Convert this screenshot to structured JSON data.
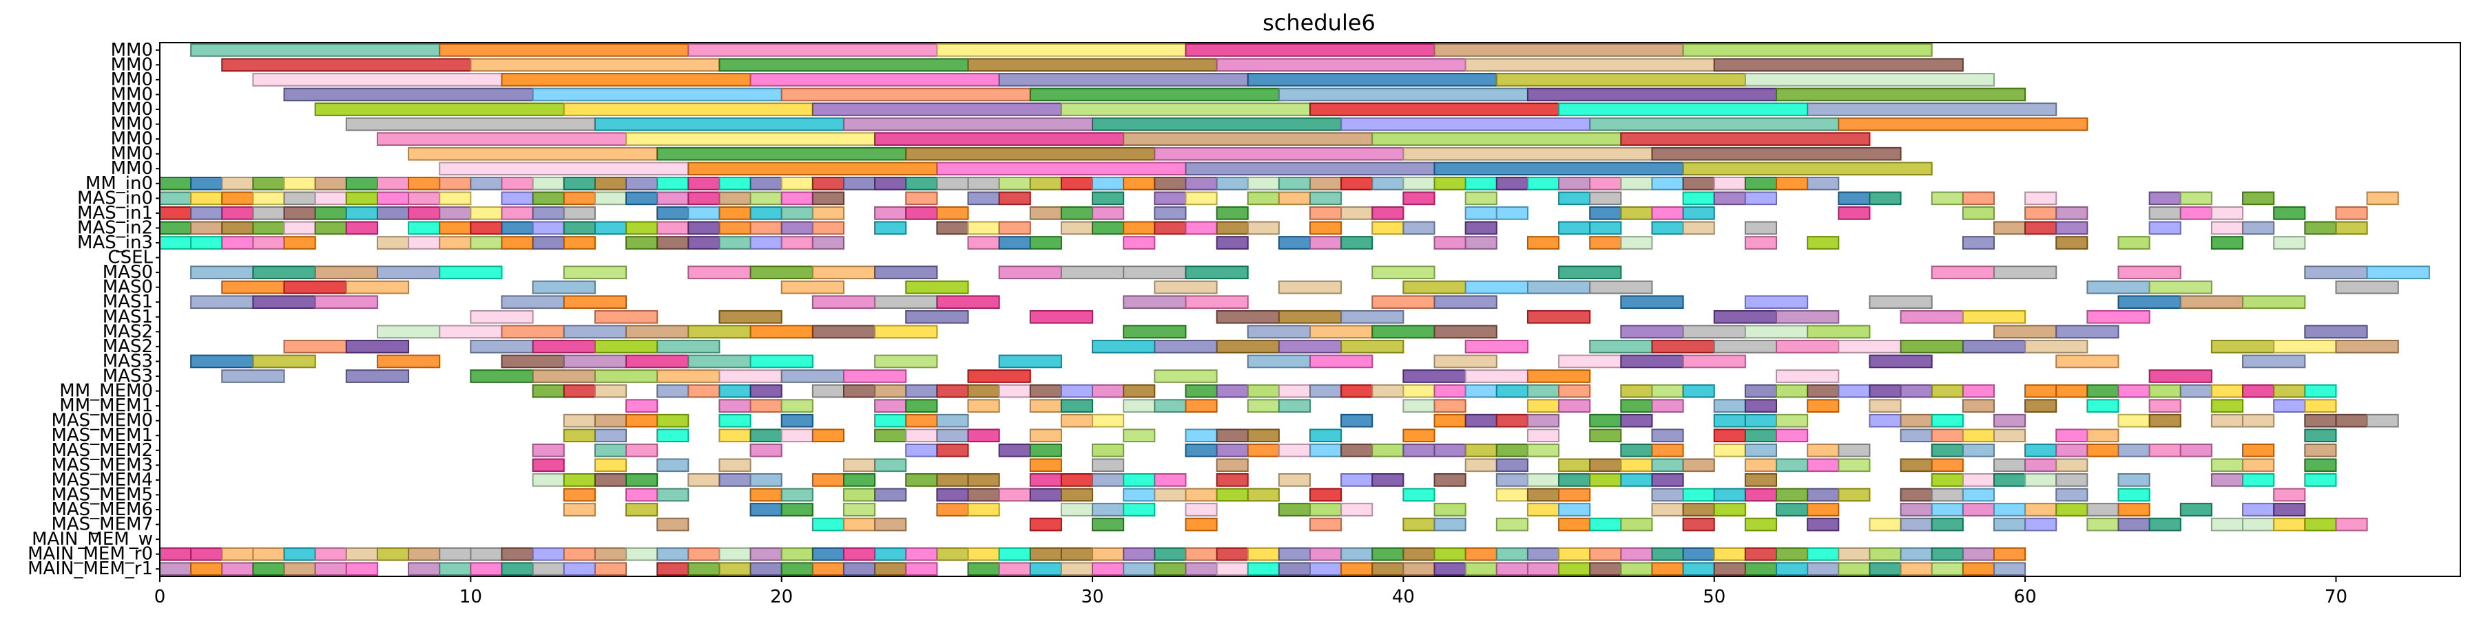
{
  "chart_data": {
    "type": "gantt",
    "title": "schedule6",
    "xlabel": "",
    "ylabel": "",
    "xlim": [
      0,
      74
    ],
    "xticks": [
      0,
      10,
      20,
      30,
      40,
      50,
      60,
      70
    ],
    "grid": false,
    "lanes": [
      "MM0",
      "MM0",
      "MM0",
      "MM0",
      "MM0",
      "MM0",
      "MM0",
      "MM0",
      "MM0",
      "MM_in0",
      "MAS_in0",
      "MAS_in1",
      "MAS_in2",
      "MAS_in3",
      "CSEL",
      "MAS0",
      "MAS0",
      "MAS1",
      "MAS1",
      "MAS2",
      "MAS2",
      "MAS3",
      "MAS3",
      "MM_MEM0",
      "MM_MEM1",
      "MAS_MEM0",
      "MAS_MEM1",
      "MAS_MEM2",
      "MAS_MEM3",
      "MAS_MEM4",
      "MAS_MEM5",
      "MAS_MEM6",
      "MAS_MEM7",
      "MAIN_MEM_w",
      "MAIN_MEM_r0",
      "MAIN_MEM_r1"
    ],
    "palette": [
      "#e377c2",
      "#8da0cb",
      "#7f7fbf",
      "#66c2a5",
      "#fc8d62",
      "#a6d854",
      "#ffd92f",
      "#e5c494",
      "#b3b3b3",
      "#1f77b4",
      "#ff7f0e",
      "#2ca02c",
      "#d62728",
      "#9467bd",
      "#8c564b",
      "#17becf",
      "#bcbd22",
      "#f781bf",
      "#80b1d3",
      "#fdb462",
      "#b3de69",
      "#fccde5",
      "#bc80bd",
      "#ccebc5",
      "#ffed6f",
      "#6a3d9a",
      "#33a02c",
      "#e31a1c",
      "#ff7f00",
      "#1b9e77",
      "#7570b3",
      "#e7298a",
      "#66a61e",
      "#a6761d",
      "#00ffcc",
      "#ff66cc",
      "#9999ff",
      "#66ccff",
      "#cc9966",
      "#99cc00"
    ],
    "tasks": [
      {
        "lane": 0,
        "start": 1,
        "dur": 8
      },
      {
        "lane": 0,
        "start": 9,
        "dur": 8
      },
      {
        "lane": 0,
        "start": 17,
        "dur": 8
      },
      {
        "lane": 0,
        "start": 25,
        "dur": 8
      },
      {
        "lane": 0,
        "start": 33,
        "dur": 8
      },
      {
        "lane": 0,
        "start": 41,
        "dur": 8
      },
      {
        "lane": 0,
        "start": 49,
        "dur": 8
      },
      {
        "lane": 1,
        "start": 2,
        "dur": 8
      },
      {
        "lane": 1,
        "start": 10,
        "dur": 8
      },
      {
        "lane": 1,
        "start": 18,
        "dur": 8
      },
      {
        "lane": 1,
        "start": 26,
        "dur": 8
      },
      {
        "lane": 1,
        "start": 34,
        "dur": 8
      },
      {
        "lane": 1,
        "start": 42,
        "dur": 8
      },
      {
        "lane": 1,
        "start": 50,
        "dur": 8
      },
      {
        "lane": 2,
        "start": 3,
        "dur": 8
      },
      {
        "lane": 2,
        "start": 11,
        "dur": 8
      },
      {
        "lane": 2,
        "start": 19,
        "dur": 8
      },
      {
        "lane": 2,
        "start": 27,
        "dur": 8
      },
      {
        "lane": 2,
        "start": 35,
        "dur": 8
      },
      {
        "lane": 2,
        "start": 43,
        "dur": 8
      },
      {
        "lane": 2,
        "start": 51,
        "dur": 8
      },
      {
        "lane": 3,
        "start": 4,
        "dur": 8
      },
      {
        "lane": 3,
        "start": 12,
        "dur": 8
      },
      {
        "lane": 3,
        "start": 20,
        "dur": 8
      },
      {
        "lane": 3,
        "start": 28,
        "dur": 8
      },
      {
        "lane": 3,
        "start": 36,
        "dur": 8
      },
      {
        "lane": 3,
        "start": 44,
        "dur": 8
      },
      {
        "lane": 3,
        "start": 52,
        "dur": 8
      },
      {
        "lane": 4,
        "start": 5,
        "dur": 8
      },
      {
        "lane": 4,
        "start": 13,
        "dur": 8
      },
      {
        "lane": 4,
        "start": 21,
        "dur": 8
      },
      {
        "lane": 4,
        "start": 29,
        "dur": 8
      },
      {
        "lane": 4,
        "start": 37,
        "dur": 8
      },
      {
        "lane": 4,
        "start": 45,
        "dur": 8
      },
      {
        "lane": 4,
        "start": 53,
        "dur": 8
      },
      {
        "lane": 5,
        "start": 6,
        "dur": 8
      },
      {
        "lane": 5,
        "start": 14,
        "dur": 8
      },
      {
        "lane": 5,
        "start": 22,
        "dur": 8
      },
      {
        "lane": 5,
        "start": 30,
        "dur": 8
      },
      {
        "lane": 5,
        "start": 38,
        "dur": 8
      },
      {
        "lane": 5,
        "start": 46,
        "dur": 8
      },
      {
        "lane": 5,
        "start": 54,
        "dur": 8
      },
      {
        "lane": 6,
        "start": 7,
        "dur": 8
      },
      {
        "lane": 6,
        "start": 15,
        "dur": 8
      },
      {
        "lane": 6,
        "start": 23,
        "dur": 8
      },
      {
        "lane": 6,
        "start": 31,
        "dur": 8
      },
      {
        "lane": 6,
        "start": 39,
        "dur": 8
      },
      {
        "lane": 6,
        "start": 47,
        "dur": 8
      },
      {
        "lane": 7,
        "start": 8,
        "dur": 8
      },
      {
        "lane": 7,
        "start": 16,
        "dur": 8
      },
      {
        "lane": 7,
        "start": 24,
        "dur": 8
      },
      {
        "lane": 7,
        "start": 32,
        "dur": 8
      },
      {
        "lane": 7,
        "start": 40,
        "dur": 8
      },
      {
        "lane": 7,
        "start": 48,
        "dur": 8
      },
      {
        "lane": 8,
        "start": 9,
        "dur": 8
      },
      {
        "lane": 8,
        "start": 17,
        "dur": 8
      },
      {
        "lane": 8,
        "start": 25,
        "dur": 8
      },
      {
        "lane": 8,
        "start": 33,
        "dur": 8
      },
      {
        "lane": 8,
        "start": 41,
        "dur": 8
      },
      {
        "lane": 8,
        "start": 49,
        "dur": 8
      }
    ],
    "dense_lanes": [
      {
        "lane": 9,
        "from": 0,
        "to": 54,
        "fill": 0.95,
        "seed": 11
      },
      {
        "lane": 10,
        "from": 0,
        "to": 22,
        "fill": 0.95,
        "seed": 12
      },
      {
        "lane": 10,
        "from": 22,
        "to": 72,
        "fill": 0.55,
        "seed": 13
      },
      {
        "lane": 11,
        "from": 0,
        "to": 21,
        "fill": 0.95,
        "seed": 14
      },
      {
        "lane": 11,
        "from": 21,
        "to": 72,
        "fill": 0.5,
        "seed": 15
      },
      {
        "lane": 12,
        "from": 0,
        "to": 22,
        "fill": 0.95,
        "seed": 16
      },
      {
        "lane": 12,
        "from": 22,
        "to": 71,
        "fill": 0.55,
        "seed": 17
      },
      {
        "lane": 13,
        "from": 0,
        "to": 22,
        "fill": 0.95,
        "seed": 18
      },
      {
        "lane": 13,
        "from": 22,
        "to": 72,
        "fill": 0.45,
        "seed": 19
      },
      {
        "lane": 15,
        "from": 1,
        "to": 74,
        "fill": 0.5,
        "seed": 20,
        "w": 2
      },
      {
        "lane": 16,
        "from": 2,
        "to": 72,
        "fill": 0.55,
        "seed": 21,
        "w": 2
      },
      {
        "lane": 17,
        "from": 1,
        "to": 71,
        "fill": 0.55,
        "seed": 22,
        "w": 2
      },
      {
        "lane": 18,
        "from": 2,
        "to": 72,
        "fill": 0.55,
        "seed": 23,
        "w": 2
      },
      {
        "lane": 19,
        "from": 1,
        "to": 72,
        "fill": 0.55,
        "seed": 24,
        "w": 2
      },
      {
        "lane": 20,
        "from": 2,
        "to": 72,
        "fill": 0.55,
        "seed": 25,
        "w": 2
      },
      {
        "lane": 21,
        "from": 1,
        "to": 72,
        "fill": 0.5,
        "seed": 26,
        "w": 2
      },
      {
        "lane": 22,
        "from": 2,
        "to": 72,
        "fill": 0.5,
        "seed": 27,
        "w": 2
      },
      {
        "lane": 23,
        "from": 12,
        "to": 70,
        "fill": 0.9,
        "seed": 28
      },
      {
        "lane": 24,
        "from": 12,
        "to": 70,
        "fill": 0.6,
        "seed": 29
      },
      {
        "lane": 25,
        "from": 12,
        "to": 72,
        "fill": 0.6,
        "seed": 30
      },
      {
        "lane": 26,
        "from": 12,
        "to": 70,
        "fill": 0.6,
        "seed": 31
      },
      {
        "lane": 27,
        "from": 12,
        "to": 70,
        "fill": 0.6,
        "seed": 32
      },
      {
        "lane": 28,
        "from": 12,
        "to": 71,
        "fill": 0.55,
        "seed": 33
      },
      {
        "lane": 29,
        "from": 12,
        "to": 70,
        "fill": 0.5,
        "seed": 34
      },
      {
        "lane": 30,
        "from": 12,
        "to": 70,
        "fill": 0.55,
        "seed": 35
      },
      {
        "lane": 31,
        "from": 12,
        "to": 71,
        "fill": 0.55,
        "seed": 36
      },
      {
        "lane": 32,
        "from": 12,
        "to": 71,
        "fill": 0.55,
        "seed": 37
      },
      {
        "lane": 34,
        "from": 0,
        "to": 60,
        "fill": 0.97,
        "seed": 38
      },
      {
        "lane": 35,
        "from": 0,
        "to": 60,
        "fill": 0.97,
        "seed": 39
      }
    ]
  }
}
